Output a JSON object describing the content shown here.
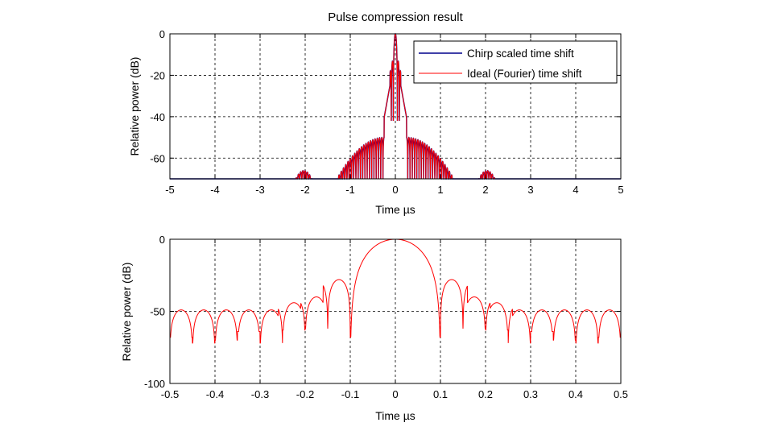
{
  "chart_data": [
    {
      "type": "line",
      "title": "Pulse compression result",
      "xlabel": "Time µs",
      "ylabel": "Relative power (dB)",
      "xlim": [
        -5,
        5
      ],
      "ylim": [
        -70,
        0
      ],
      "xticks": [
        "-5",
        "-4",
        "-3",
        "-2",
        "-1",
        "0",
        "1",
        "2",
        "3",
        "4",
        "5"
      ],
      "yticks": [
        "0",
        "-20",
        "-40",
        "-60"
      ],
      "grid": true,
      "legend_position": "top-right",
      "series": [
        {
          "name": "Chirp scaled time shift",
          "color": "#00008b"
        },
        {
          "name": "Ideal (Fourier) time shift",
          "color": "#ff0000"
        }
      ]
    },
    {
      "type": "line",
      "title": "",
      "xlabel": "Time µs",
      "ylabel": "Relative power (dB)",
      "xlim": [
        -0.5,
        0.5
      ],
      "ylim": [
        -100,
        0
      ],
      "xticks": [
        "-0.5",
        "-0.4",
        "-0.3",
        "-0.2",
        "-0.1",
        "0",
        "0.1",
        "0.2",
        "0.3",
        "0.4",
        "0.5"
      ],
      "yticks": [
        "0",
        "-50",
        "-100"
      ],
      "grid": true,
      "series": [
        {
          "color": "#ff0000"
        }
      ]
    }
  ]
}
